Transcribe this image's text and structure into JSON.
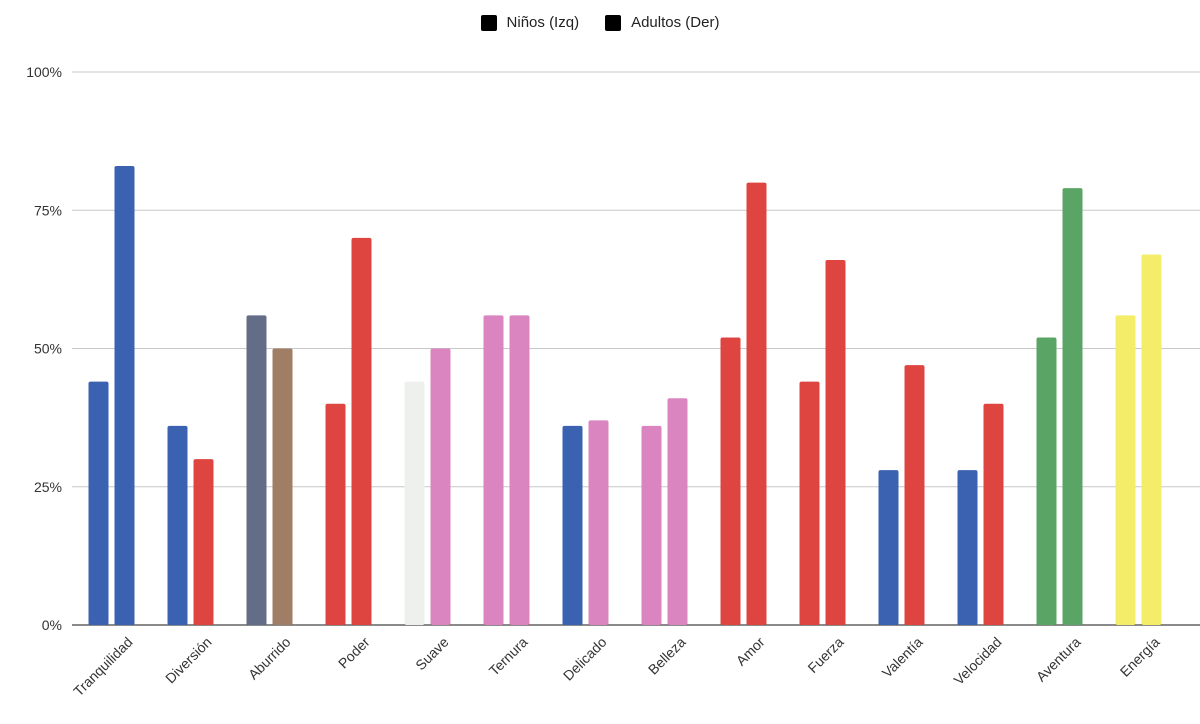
{
  "chart_data": {
    "type": "bar",
    "categories": [
      "Tranquilidad",
      "Diversión",
      "Aburrido",
      "Poder",
      "Suave",
      "Ternura",
      "Delicado",
      "Belleza",
      "Amor",
      "Fuerza",
      "Valentía",
      "Velocidad",
      "Aventura",
      "Energía"
    ],
    "series": [
      {
        "name": "Niños (Izq)",
        "values": [
          44,
          36,
          56,
          40,
          44,
          56,
          36,
          36,
          52,
          44,
          28,
          28,
          52,
          56
        ],
        "colors": [
          "#3a62b0",
          "#3a62b0",
          "#646d87",
          "#df4540",
          "#eef0ee",
          "#da85bf",
          "#3a62b0",
          "#da85bf",
          "#df4540",
          "#df4540",
          "#3a62b0",
          "#3a62b0",
          "#5aa566",
          "#f4ed6a"
        ]
      },
      {
        "name": "Adultos (Der)",
        "values": [
          83,
          30,
          50,
          70,
          50,
          56,
          37,
          41,
          80,
          66,
          47,
          40,
          79,
          67
        ],
        "colors": [
          "#3a62b0",
          "#df4540",
          "#a07e66",
          "#df4540",
          "#da85bf",
          "#da85bf",
          "#da85bf",
          "#da85bf",
          "#df4540",
          "#df4540",
          "#df4540",
          "#df4540",
          "#5aa566",
          "#f4ed6a"
        ]
      }
    ],
    "y_ticks": [
      "0%",
      "25%",
      "50%",
      "75%",
      "100%"
    ],
    "ylim": [
      0,
      100
    ],
    "grid": true,
    "legend_position": "top"
  }
}
